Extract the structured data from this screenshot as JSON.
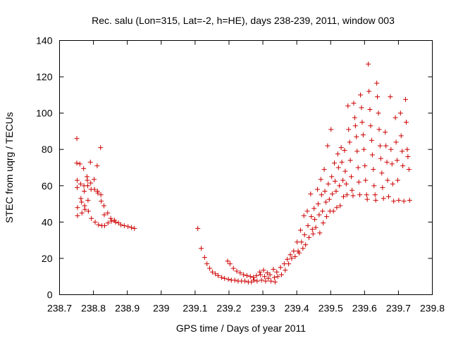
{
  "chart_data": {
    "type": "scatter",
    "title": "Rec. salu (Lon=315, Lat=-2, h=HE), days 238-239, 2011, window 003",
    "xlabel": "GPS time / Days of year 2011",
    "ylabel": "STEC from uqrg / TECUs",
    "xlim": [
      238.7,
      239.8
    ],
    "ylim": [
      0,
      140
    ],
    "xticks": [
      238.7,
      238.8,
      238.9,
      239.0,
      239.1,
      239.2,
      239.3,
      239.4,
      239.5,
      239.6,
      239.7,
      239.8
    ],
    "xtick_labels": [
      "238.7",
      "238.8",
      "238.9",
      "239",
      "239.1",
      "239.2",
      "239.3",
      "239.4",
      "239.5",
      "239.6",
      "239.7",
      "239.8"
    ],
    "yticks": [
      0,
      20,
      40,
      60,
      80,
      100,
      120,
      140
    ],
    "ytick_labels": [
      "0",
      "20",
      "40",
      "60",
      "80",
      "100",
      "120",
      "140"
    ],
    "grid": false,
    "marker": "plus",
    "color": "#cc0000",
    "series": [
      {
        "points": [
          [
            238.751,
            86
          ],
          [
            238.751,
            72.5
          ],
          [
            238.752,
            63
          ],
          [
            238.752,
            59
          ],
          [
            238.753,
            48
          ],
          [
            238.753,
            43.5
          ],
          [
            238.76,
            72
          ],
          [
            238.762,
            61
          ],
          [
            238.763,
            53
          ],
          [
            238.765,
            51
          ],
          [
            238.766,
            45
          ],
          [
            238.771,
            69.5
          ],
          [
            238.772,
            60
          ],
          [
            238.773,
            57
          ],
          [
            238.774,
            49
          ],
          [
            238.775,
            47
          ],
          [
            238.781,
            65
          ],
          [
            238.782,
            63
          ],
          [
            238.783,
            60
          ],
          [
            238.784,
            52
          ],
          [
            238.785,
            46
          ],
          [
            238.791,
            73
          ],
          [
            238.792,
            61.5
          ],
          [
            238.793,
            58
          ],
          [
            238.794,
            42
          ],
          [
            238.802,
            63.5
          ],
          [
            238.803,
            58
          ],
          [
            238.805,
            40
          ],
          [
            238.811,
            71
          ],
          [
            238.812,
            57
          ],
          [
            238.813,
            56
          ],
          [
            238.815,
            38.5
          ],
          [
            238.821,
            81
          ],
          [
            238.822,
            55
          ],
          [
            238.823,
            51.5
          ],
          [
            238.825,
            38
          ],
          [
            238.831,
            49
          ],
          [
            238.832,
            44
          ],
          [
            238.833,
            38
          ],
          [
            238.842,
            45
          ],
          [
            238.843,
            39.5
          ],
          [
            238.851,
            42
          ],
          [
            238.853,
            40.5
          ],
          [
            238.862,
            41
          ],
          [
            238.865,
            40
          ],
          [
            238.874,
            39.5
          ],
          [
            238.881,
            38.5
          ],
          [
            238.891,
            38
          ],
          [
            238.902,
            37.5
          ],
          [
            238.912,
            37
          ],
          [
            238.921,
            36.5
          ],
          [
            239.108,
            36.5
          ],
          [
            239.118,
            25.5
          ],
          [
            239.128,
            20.5
          ],
          [
            239.135,
            17
          ],
          [
            239.143,
            14.5
          ],
          [
            239.151,
            12.5
          ],
          [
            239.16,
            11.5
          ],
          [
            239.168,
            10.5
          ],
          [
            239.178,
            9.5
          ],
          [
            239.187,
            9
          ],
          [
            239.196,
            18.5
          ],
          [
            239.198,
            8.5
          ],
          [
            239.203,
            17
          ],
          [
            239.207,
            8
          ],
          [
            239.213,
            14.5
          ],
          [
            239.217,
            8
          ],
          [
            239.223,
            13
          ],
          [
            239.227,
            7.5
          ],
          [
            239.233,
            12
          ],
          [
            239.237,
            7.5
          ],
          [
            239.243,
            11
          ],
          [
            239.247,
            7.5
          ],
          [
            239.253,
            10.5
          ],
          [
            239.257,
            7
          ],
          [
            239.263,
            10
          ],
          [
            239.266,
            7
          ],
          [
            239.272,
            9.5
          ],
          [
            239.274,
            8
          ],
          [
            239.281,
            10.5
          ],
          [
            239.283,
            7.5
          ],
          [
            239.291,
            12.5
          ],
          [
            239.293,
            11
          ],
          [
            239.296,
            8
          ],
          [
            239.302,
            13.5
          ],
          [
            239.305,
            10
          ],
          [
            239.308,
            7.5
          ],
          [
            239.313,
            12
          ],
          [
            239.316,
            9
          ],
          [
            239.321,
            11
          ],
          [
            239.324,
            7.5
          ],
          [
            239.331,
            14
          ],
          [
            239.334,
            9.5
          ],
          [
            239.336,
            7
          ],
          [
            239.341,
            12.5
          ],
          [
            239.344,
            10
          ],
          [
            239.352,
            15
          ],
          [
            239.355,
            11
          ],
          [
            239.363,
            17
          ],
          [
            239.366,
            13.5
          ],
          [
            239.372,
            19.5
          ],
          [
            239.376,
            17
          ],
          [
            239.381,
            22
          ],
          [
            239.385,
            20
          ],
          [
            239.391,
            24
          ],
          [
            239.395,
            21
          ],
          [
            239.401,
            29
          ],
          [
            239.404,
            24
          ],
          [
            239.407,
            23
          ],
          [
            239.411,
            35.5
          ],
          [
            239.414,
            29
          ],
          [
            239.418,
            25.5
          ],
          [
            239.421,
            43.5
          ],
          [
            239.423,
            33
          ],
          [
            239.426,
            27.5
          ],
          [
            239.431,
            46
          ],
          [
            239.433,
            38
          ],
          [
            239.436,
            31.5
          ],
          [
            239.441,
            55.5
          ],
          [
            239.443,
            43
          ],
          [
            239.446,
            36
          ],
          [
            239.448,
            33.5
          ],
          [
            239.451,
            47.5
          ],
          [
            239.453,
            41.5
          ],
          [
            239.456,
            37
          ],
          [
            239.461,
            58
          ],
          [
            239.463,
            50
          ],
          [
            239.466,
            44
          ],
          [
            239.468,
            34
          ],
          [
            239.471,
            63.5
          ],
          [
            239.473,
            55
          ],
          [
            239.476,
            46
          ],
          [
            239.478,
            39.5
          ],
          [
            239.481,
            69
          ],
          [
            239.483,
            57
          ],
          [
            239.486,
            51
          ],
          [
            239.488,
            43
          ],
          [
            239.491,
            82
          ],
          [
            239.493,
            61
          ],
          [
            239.496,
            52.5
          ],
          [
            239.498,
            46
          ],
          [
            239.501,
            91
          ],
          [
            239.503,
            65
          ],
          [
            239.505,
            55.5
          ],
          [
            239.508,
            46
          ],
          [
            239.511,
            72.5
          ],
          [
            239.513,
            62.5
          ],
          [
            239.516,
            57
          ],
          [
            239.518,
            48
          ],
          [
            239.521,
            77.5
          ],
          [
            239.523,
            70
          ],
          [
            239.526,
            60
          ],
          [
            239.528,
            49
          ],
          [
            239.531,
            81
          ],
          [
            239.533,
            73
          ],
          [
            239.536,
            63
          ],
          [
            239.538,
            54
          ],
          [
            239.541,
            79.5
          ],
          [
            239.543,
            68
          ],
          [
            239.546,
            61
          ],
          [
            239.548,
            55
          ],
          [
            239.551,
            104
          ],
          [
            239.553,
            91
          ],
          [
            239.556,
            84
          ],
          [
            239.558,
            74
          ],
          [
            239.561,
            65
          ],
          [
            239.563,
            57.5
          ],
          [
            239.566,
            54.5
          ],
          [
            239.568,
            105.5
          ],
          [
            239.571,
            97.5
          ],
          [
            239.573,
            93
          ],
          [
            239.576,
            87
          ],
          [
            239.578,
            79
          ],
          [
            239.581,
            70
          ],
          [
            239.583,
            62
          ],
          [
            239.586,
            55
          ],
          [
            239.588,
            110
          ],
          [
            239.591,
            103
          ],
          [
            239.593,
            95
          ],
          [
            239.596,
            88
          ],
          [
            239.598,
            80
          ],
          [
            239.601,
            71
          ],
          [
            239.603,
            63
          ],
          [
            239.606,
            55
          ],
          [
            239.608,
            52.5
          ],
          [
            239.611,
            127
          ],
          [
            239.613,
            112
          ],
          [
            239.616,
            102
          ],
          [
            239.618,
            93
          ],
          [
            239.621,
            85
          ],
          [
            239.623,
            77
          ],
          [
            239.626,
            69
          ],
          [
            239.628,
            60
          ],
          [
            239.631,
            55
          ],
          [
            239.633,
            52
          ],
          [
            239.636,
            116.5
          ],
          [
            239.638,
            109
          ],
          [
            239.641,
            100
          ],
          [
            239.643,
            91
          ],
          [
            239.646,
            82
          ],
          [
            239.648,
            75
          ],
          [
            239.651,
            67
          ],
          [
            239.653,
            59
          ],
          [
            239.656,
            53
          ],
          [
            239.661,
            89.5
          ],
          [
            239.663,
            82
          ],
          [
            239.666,
            73
          ],
          [
            239.668,
            63
          ],
          [
            239.671,
            54
          ],
          [
            239.676,
            109
          ],
          [
            239.678,
            80
          ],
          [
            239.681,
            72
          ],
          [
            239.683,
            61
          ],
          [
            239.686,
            51.5
          ],
          [
            239.691,
            97.5
          ],
          [
            239.693,
            84
          ],
          [
            239.696,
            74
          ],
          [
            239.698,
            63
          ],
          [
            239.701,
            52
          ],
          [
            239.706,
            100
          ],
          [
            239.708,
            87.5
          ],
          [
            239.711,
            79
          ],
          [
            239.713,
            71
          ],
          [
            239.716,
            51.5
          ],
          [
            239.721,
            107.5
          ],
          [
            239.723,
            95
          ],
          [
            239.726,
            80
          ],
          [
            239.728,
            76
          ],
          [
            239.731,
            69
          ],
          [
            239.733,
            52
          ]
        ]
      }
    ]
  }
}
